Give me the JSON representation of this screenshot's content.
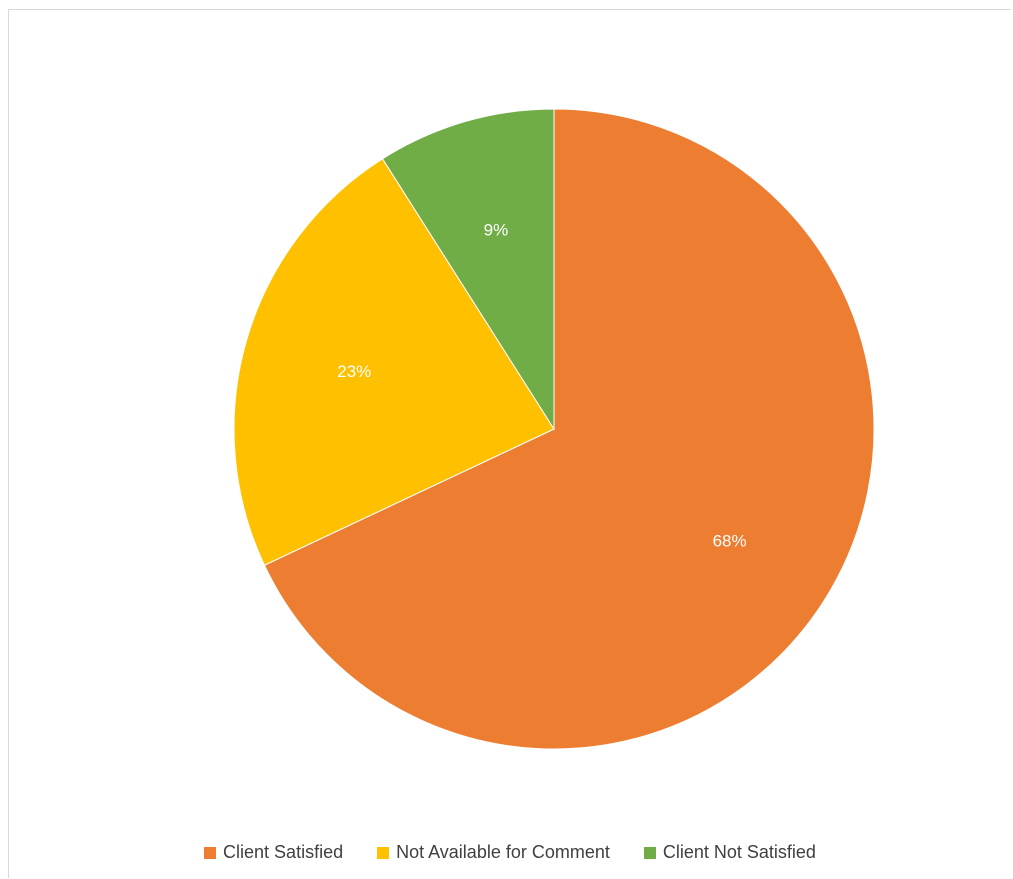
{
  "chart_data": {
    "type": "pie",
    "title": "",
    "categories": [
      "Client Satisfied",
      "Not Available for Comment",
      "Client Not Satisfied"
    ],
    "values": [
      68,
      23,
      9
    ],
    "data_labels": [
      "68%",
      "23%",
      "9%"
    ],
    "colors": [
      "#ED7D31",
      "#FFC000",
      "#70AD47"
    ],
    "start_angle": "12 o'clock",
    "direction": "clockwise",
    "legend_position": "bottom"
  }
}
